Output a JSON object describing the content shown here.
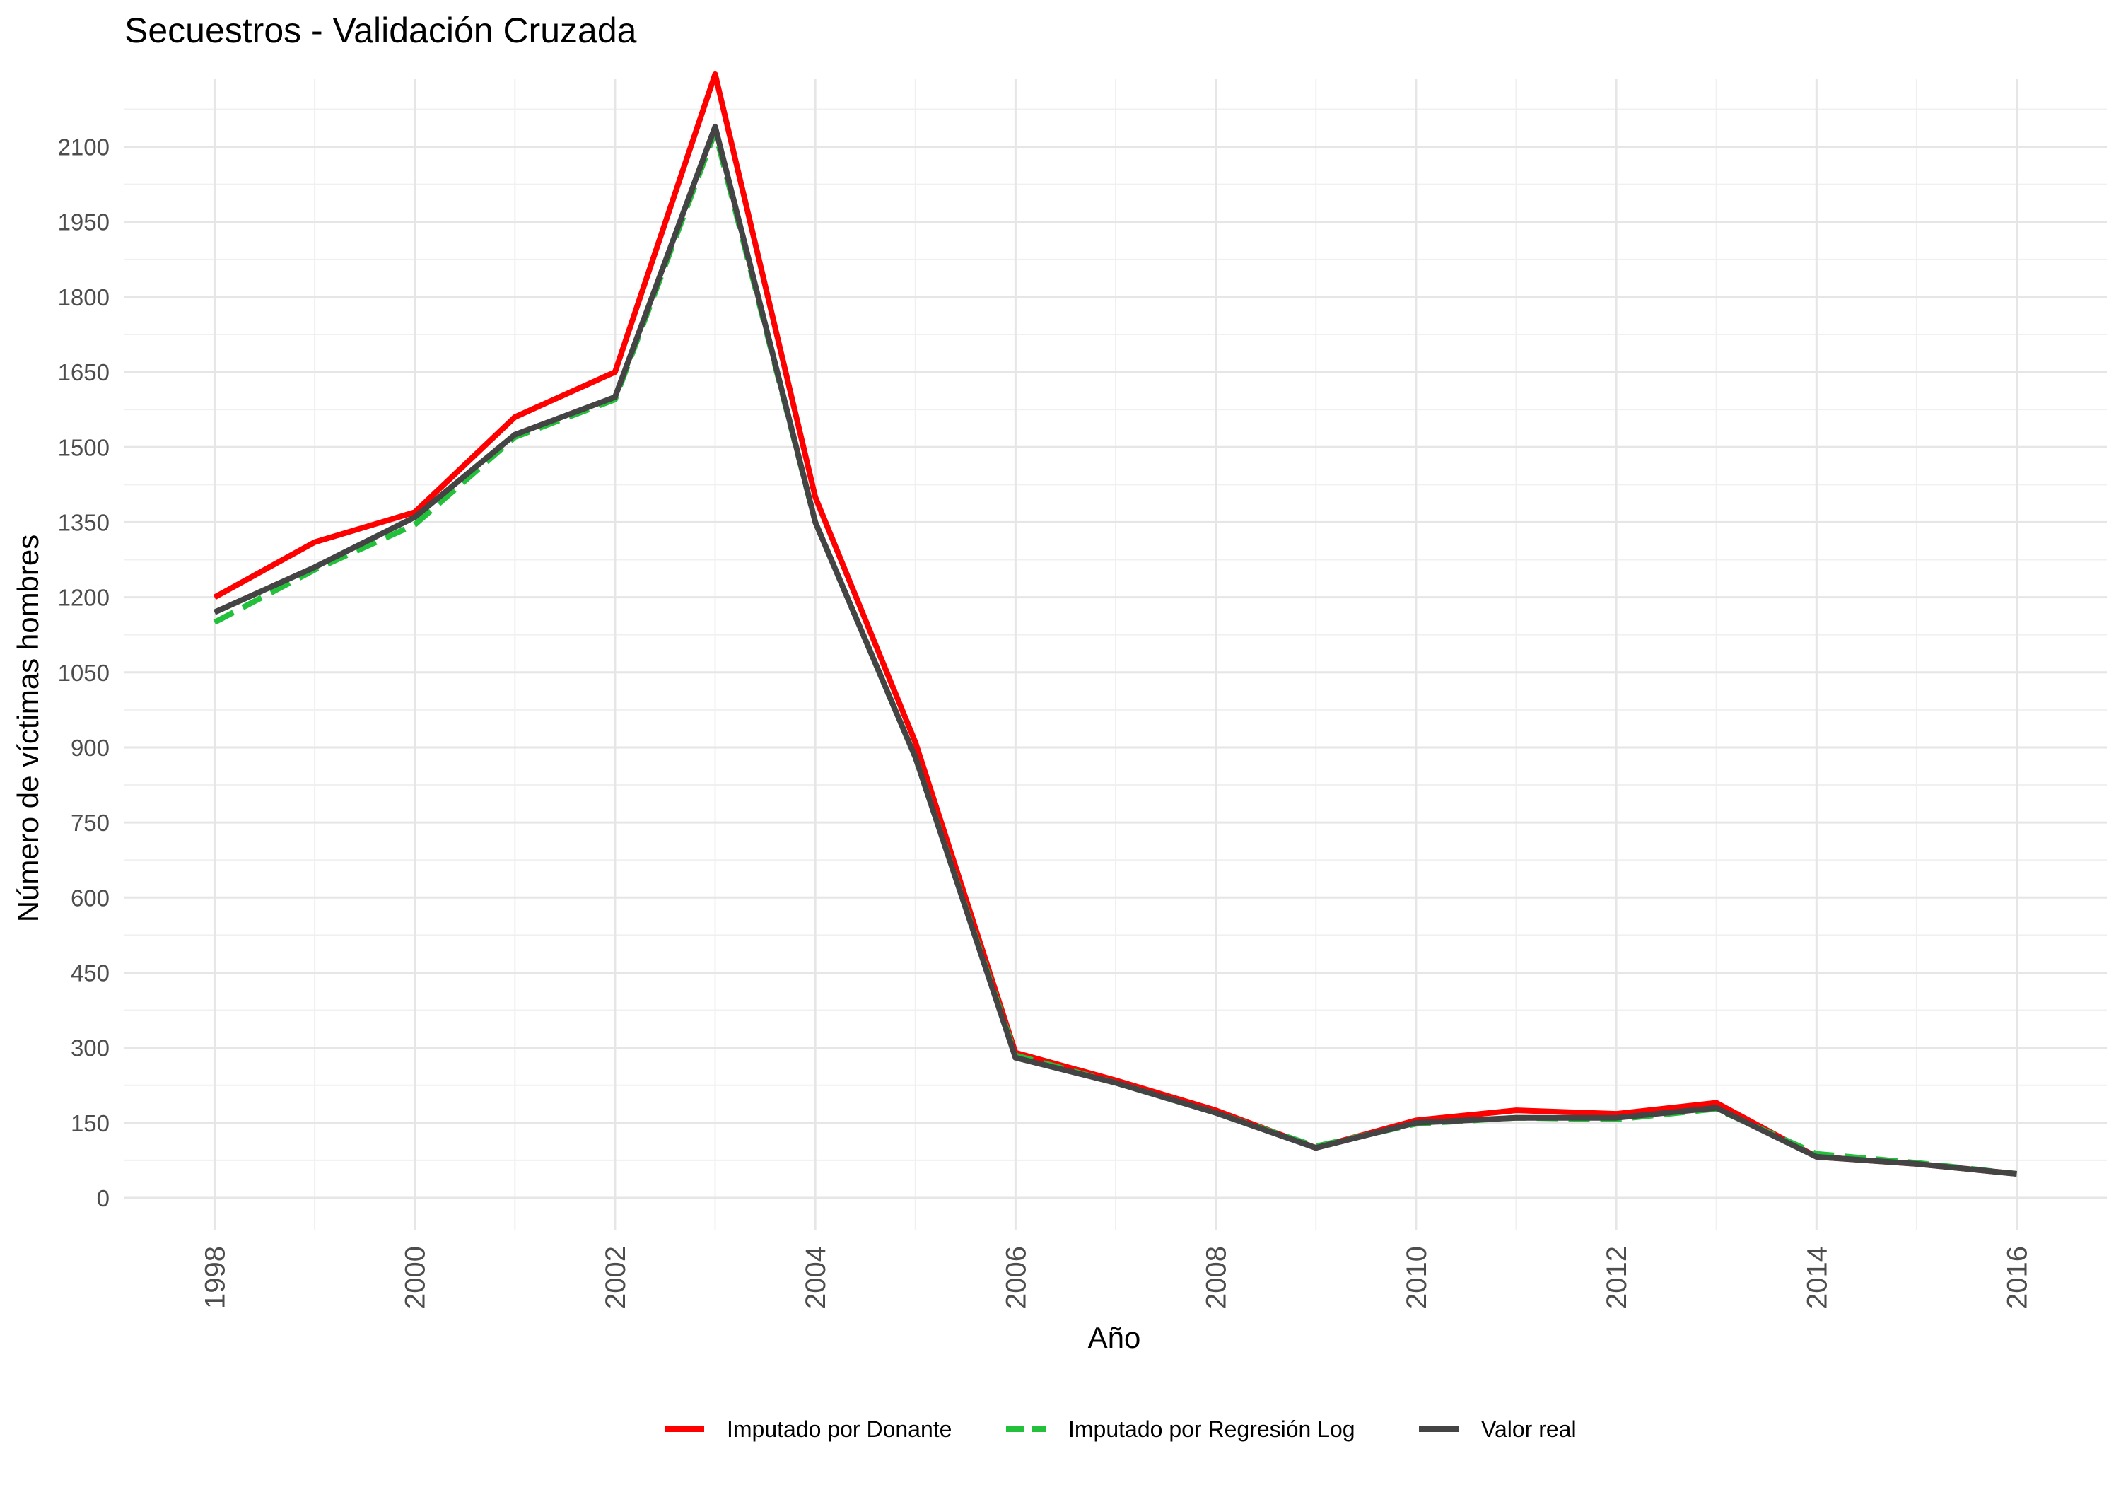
{
  "chart_data": {
    "type": "line",
    "title": "Secuestros - Validación Cruzada",
    "xlabel": "Año",
    "ylabel": "Número de víctimas hombres",
    "x": [
      1998,
      1999,
      2000,
      2001,
      2002,
      2003,
      2004,
      2005,
      2006,
      2007,
      2008,
      2009,
      2010,
      2011,
      2012,
      2013,
      2014,
      2015,
      2016
    ],
    "x_ticks": [
      1998,
      2000,
      2002,
      2004,
      2006,
      2008,
      2010,
      2012,
      2014,
      2016
    ],
    "y_ticks": [
      0,
      150,
      300,
      450,
      600,
      750,
      900,
      1050,
      1200,
      1350,
      1500,
      1650,
      1800,
      1950,
      2100
    ],
    "xlim": [
      1997.1,
      2016.9
    ],
    "ylim": [
      -65,
      2235
    ],
    "grid": true,
    "legend_position": "bottom",
    "series": [
      {
        "name": "Imputado por Donante",
        "color": "#ff0000",
        "dash": "solid",
        "values": [
          1200,
          1310,
          1370,
          1560,
          1650,
          2245,
          1400,
          910,
          290,
          235,
          175,
          100,
          155,
          175,
          168,
          190,
          82,
          68,
          48
        ]
      },
      {
        "name": "Imputado por Regresión Log",
        "color": "#22c03b",
        "dash": "dashed",
        "values": [
          1150,
          1255,
          1345,
          1520,
          1595,
          2130,
          1350,
          880,
          285,
          230,
          170,
          103,
          148,
          160,
          157,
          178,
          88,
          70,
          48
        ]
      },
      {
        "name": "Valor real",
        "color": "#444444",
        "dash": "solid",
        "values": [
          1170,
          1260,
          1360,
          1525,
          1600,
          2140,
          1350,
          880,
          280,
          230,
          170,
          100,
          150,
          160,
          160,
          180,
          82,
          68,
          48
        ]
      }
    ]
  }
}
